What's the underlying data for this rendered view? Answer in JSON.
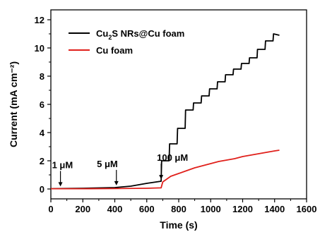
{
  "chart_data": {
    "type": "line",
    "xlabel": "Time (s)",
    "ylabel": "Current (mA cm⁻²)",
    "xlim": [
      0,
      1600
    ],
    "ylim": [
      -0.7,
      12.7
    ],
    "x_ticks": [
      "0",
      "200",
      "400",
      "600",
      "800",
      "1000",
      "1200",
      "1400",
      "1600"
    ],
    "y_ticks": [
      "0",
      "2",
      "4",
      "6",
      "8",
      "10",
      "12"
    ],
    "grid": false,
    "legend_position": "top-left",
    "colors": {
      "cu2s": "#000000",
      "cufoam": "#e0201b"
    },
    "legend": [
      {
        "label_main": "Cu",
        "label_sub": "2",
        "label_rest": "S NRs@Cu foam",
        "color": "#000000"
      },
      {
        "label_main": "Cu foam",
        "label_sub": "",
        "label_rest": "",
        "color": "#e0201b"
      }
    ],
    "annotations": [
      {
        "text": "1 μM",
        "x": 60
      },
      {
        "text": "5 μM",
        "x": 410
      },
      {
        "text": "100 μM",
        "x": 690
      }
    ],
    "series": [
      {
        "name": "Cu2S NRs@Cu foam",
        "color": "#000000",
        "x": [
          0,
          60,
          200,
          400,
          500,
          600,
          690,
          693,
          740,
          743,
          790,
          793,
          840,
          843,
          890,
          893,
          940,
          943,
          990,
          993,
          1040,
          1043,
          1090,
          1093,
          1140,
          1143,
          1190,
          1193,
          1240,
          1243,
          1290,
          1293,
          1340,
          1343,
          1390,
          1393,
          1430
        ],
        "y": [
          0.02,
          0.03,
          0.05,
          0.1,
          0.2,
          0.4,
          0.55,
          2.0,
          2.0,
          3.2,
          3.2,
          4.3,
          4.3,
          5.6,
          5.6,
          6.1,
          6.1,
          6.6,
          6.6,
          7.1,
          7.1,
          7.6,
          7.6,
          8.1,
          8.1,
          8.5,
          8.5,
          8.9,
          8.9,
          9.3,
          9.3,
          9.9,
          9.9,
          10.5,
          10.5,
          11.0,
          10.9
        ]
      },
      {
        "name": "Cu foam",
        "color": "#e0201b",
        "x": [
          0,
          200,
          400,
          600,
          690,
          700,
          750,
          800,
          850,
          900,
          950,
          1000,
          1050,
          1100,
          1150,
          1200,
          1250,
          1300,
          1350,
          1400,
          1430
        ],
        "y": [
          0.02,
          0.02,
          0.03,
          0.05,
          0.08,
          0.5,
          0.9,
          1.1,
          1.3,
          1.5,
          1.65,
          1.8,
          1.95,
          2.05,
          2.15,
          2.3,
          2.4,
          2.5,
          2.6,
          2.7,
          2.75
        ]
      }
    ]
  }
}
